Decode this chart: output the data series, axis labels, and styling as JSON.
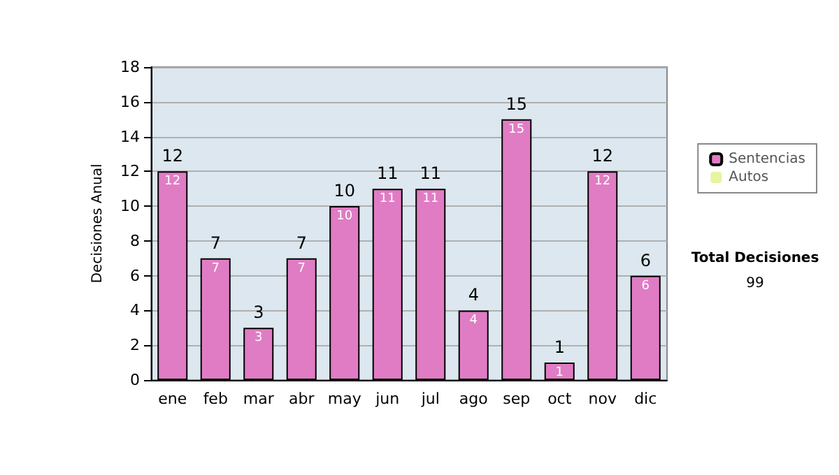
{
  "chart_data": {
    "type": "bar",
    "ylabel": "Decisiones Anual",
    "categories": [
      "ene",
      "feb",
      "mar",
      "abr",
      "may",
      "jun",
      "jul",
      "ago",
      "sep",
      "oct",
      "nov",
      "dic"
    ],
    "series": [
      {
        "name": "Sentencias",
        "color": "#e07cc4",
        "values": [
          12,
          7,
          3,
          7,
          10,
          11,
          11,
          4,
          15,
          1,
          12,
          6
        ],
        "value_labels": [
          "12",
          "7",
          "3",
          "7",
          "10",
          "11",
          "11",
          "4",
          "15",
          "1",
          "12",
          "6"
        ]
      },
      {
        "name": "Autos",
        "color": "#e6f5a0",
        "values": [
          0,
          0,
          0,
          0,
          0,
          0,
          0,
          0,
          0,
          0,
          0,
          0
        ]
      }
    ],
    "stacked": true,
    "totals": [
      "12",
      "7",
      "3",
      "7",
      "10",
      "11",
      "11",
      "4",
      "15",
      "1",
      "12",
      "6"
    ],
    "ylim": [
      0,
      18
    ],
    "yticks": [
      0,
      2,
      4,
      6,
      8,
      10,
      12,
      14,
      16,
      18
    ],
    "grid": "y",
    "legend": "right",
    "annotations": [
      "Total Decisiones",
      "99"
    ]
  }
}
